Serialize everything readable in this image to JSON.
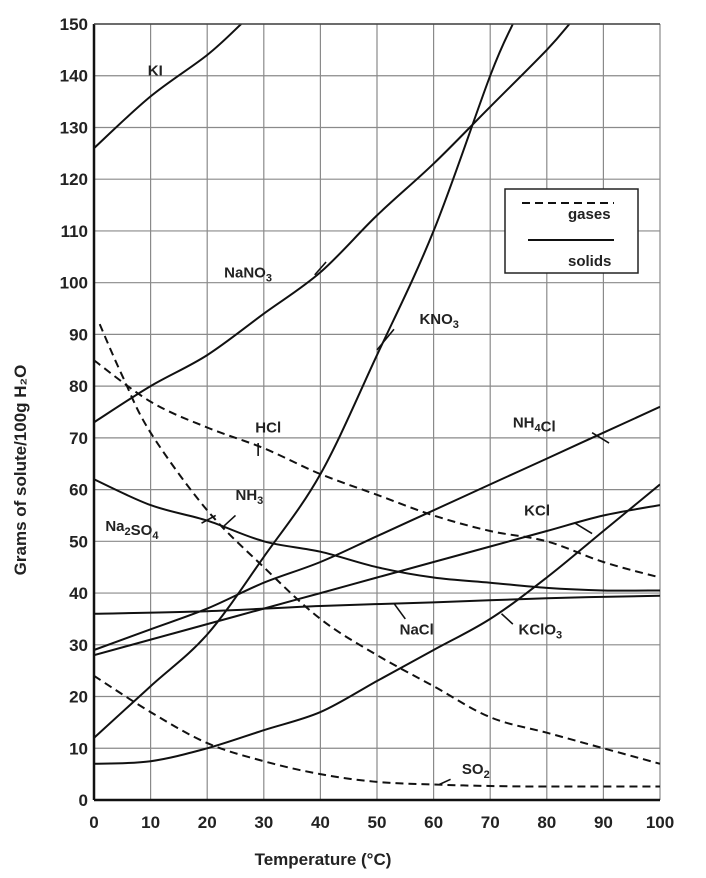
{
  "chart_data": {
    "type": "line",
    "xlabel": "Temperature (°C)",
    "ylabel": "Grams of solute/100g H₂O",
    "xlim": [
      0,
      100
    ],
    "ylim": [
      0,
      150
    ],
    "xticks": [
      "0",
      "10",
      "20",
      "30",
      "40",
      "50",
      "60",
      "70",
      "80",
      "90",
      "100"
    ],
    "yticks": [
      "0",
      "10",
      "20",
      "30",
      "40",
      "50",
      "60",
      "70",
      "80",
      "90",
      "100",
      "110",
      "120",
      "130",
      "140",
      "150"
    ],
    "grid": true,
    "legend": {
      "placement": "top-right",
      "entries": [
        {
          "label": "gases",
          "style": "dashed"
        },
        {
          "label": "solids",
          "style": "solid"
        }
      ]
    },
    "series": [
      {
        "name": "KI",
        "style": "solid",
        "points": [
          [
            0,
            126
          ],
          [
            10,
            136
          ],
          [
            20,
            144
          ],
          [
            26,
            150
          ]
        ]
      },
      {
        "name": "NaNO3",
        "style": "solid",
        "points": [
          [
            0,
            73
          ],
          [
            10,
            80
          ],
          [
            20,
            86
          ],
          [
            30,
            94
          ],
          [
            40,
            102
          ],
          [
            50,
            113
          ],
          [
            60,
            123
          ],
          [
            70,
            134
          ],
          [
            80,
            145
          ],
          [
            84,
            150
          ]
        ]
      },
      {
        "name": "KNO3",
        "style": "solid",
        "points": [
          [
            0,
            12
          ],
          [
            10,
            22
          ],
          [
            20,
            32
          ],
          [
            30,
            47
          ],
          [
            40,
            63
          ],
          [
            50,
            86
          ],
          [
            60,
            110
          ],
          [
            70,
            140
          ],
          [
            74,
            150
          ]
        ]
      },
      {
        "name": "NH4Cl",
        "style": "solid",
        "points": [
          [
            0,
            29
          ],
          [
            10,
            33
          ],
          [
            20,
            37
          ],
          [
            30,
            42
          ],
          [
            40,
            46
          ],
          [
            50,
            51
          ],
          [
            60,
            56
          ],
          [
            70,
            61
          ],
          [
            80,
            66
          ],
          [
            90,
            71
          ],
          [
            100,
            76
          ]
        ]
      },
      {
        "name": "KCl",
        "style": "solid",
        "points": [
          [
            0,
            28
          ],
          [
            10,
            31
          ],
          [
            20,
            34
          ],
          [
            30,
            37
          ],
          [
            40,
            40
          ],
          [
            50,
            43
          ],
          [
            60,
            46
          ],
          [
            70,
            49
          ],
          [
            80,
            52
          ],
          [
            90,
            55
          ],
          [
            100,
            57
          ]
        ]
      },
      {
        "name": "NaCl",
        "style": "solid",
        "points": [
          [
            0,
            36
          ],
          [
            20,
            36.5
          ],
          [
            40,
            37.5
          ],
          [
            60,
            38.2
          ],
          [
            80,
            39
          ],
          [
            100,
            39.5
          ]
        ]
      },
      {
        "name": "KClO3",
        "style": "solid",
        "points": [
          [
            0,
            7
          ],
          [
            10,
            7.5
          ],
          [
            20,
            10
          ],
          [
            30,
            13.5
          ],
          [
            40,
            17
          ],
          [
            50,
            23
          ],
          [
            60,
            29
          ],
          [
            70,
            35
          ],
          [
            80,
            43
          ],
          [
            90,
            52
          ],
          [
            100,
            61
          ]
        ]
      },
      {
        "name": "Na2SO4",
        "style": "solid",
        "points": [
          [
            0,
            62
          ],
          [
            10,
            57
          ],
          [
            20,
            54
          ],
          [
            30,
            50
          ],
          [
            40,
            48
          ],
          [
            50,
            45
          ],
          [
            60,
            43
          ],
          [
            70,
            42
          ],
          [
            80,
            41
          ],
          [
            90,
            40.5
          ],
          [
            100,
            40.5
          ]
        ]
      },
      {
        "name": "HCl",
        "style": "dashed",
        "points": [
          [
            0,
            85
          ],
          [
            10,
            77
          ],
          [
            20,
            72
          ],
          [
            30,
            68
          ],
          [
            40,
            63
          ],
          [
            50,
            59
          ],
          [
            60,
            55
          ],
          [
            70,
            52
          ],
          [
            80,
            50
          ],
          [
            90,
            46
          ],
          [
            100,
            43
          ]
        ]
      },
      {
        "name": "NH3",
        "style": "dashed",
        "points": [
          [
            1,
            92
          ],
          [
            5,
            82
          ],
          [
            10,
            71
          ],
          [
            20,
            56
          ],
          [
            30,
            45
          ],
          [
            40,
            35
          ],
          [
            50,
            28
          ],
          [
            60,
            22
          ],
          [
            70,
            16
          ],
          [
            80,
            13
          ],
          [
            90,
            10
          ],
          [
            100,
            7
          ]
        ]
      },
      {
        "name": "SO2",
        "style": "dashed",
        "points": [
          [
            0,
            24
          ],
          [
            10,
            17
          ],
          [
            20,
            11
          ],
          [
            30,
            7.5
          ],
          [
            40,
            5
          ],
          [
            50,
            3.5
          ],
          [
            60,
            3
          ],
          [
            70,
            2.7
          ],
          [
            80,
            2.6
          ],
          [
            90,
            2.6
          ],
          [
            100,
            2.6
          ]
        ]
      }
    ],
    "curve_labels": [
      {
        "series": "KI",
        "text": "KI"
      },
      {
        "series": "NaNO3",
        "text": "NaNO3"
      },
      {
        "series": "KNO3",
        "text": "KNO3"
      },
      {
        "series": "HCl",
        "text": "HCl"
      },
      {
        "series": "NH3",
        "text": "NH3"
      },
      {
        "series": "Na2SO4",
        "text": "Na2SO4"
      },
      {
        "series": "NH4Cl",
        "text": "NH4Cl"
      },
      {
        "series": "KCl",
        "text": "KCl"
      },
      {
        "series": "NaCl",
        "text": "NaCl"
      },
      {
        "series": "KClO3",
        "text": "KClO3"
      },
      {
        "series": "SO2",
        "text": "SO2"
      }
    ]
  }
}
